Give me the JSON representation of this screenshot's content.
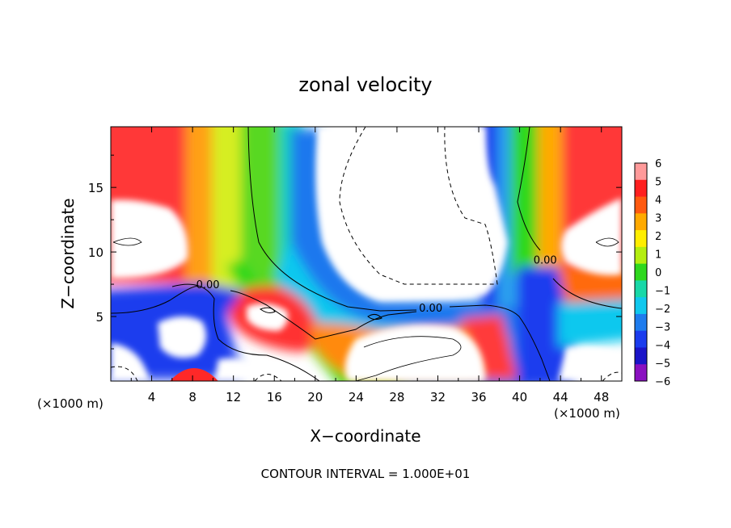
{
  "chart_data": {
    "type": "heatmap",
    "title": "zonal velocity",
    "xlabel": "X−coordinate",
    "ylabel": "Z−coordinate",
    "x_unit_left": "(×1000 m)",
    "x_unit_right": "(×1000 m)",
    "footer": "CONTOUR INTERVAL = 1.000E+01",
    "xlim": [
      0,
      50
    ],
    "ylim": [
      0,
      19.7
    ],
    "x_ticks": [
      4,
      8,
      12,
      16,
      20,
      24,
      28,
      32,
      36,
      40,
      44,
      48
    ],
    "x_tick_labels": [
      "4",
      "8",
      "12",
      "16",
      "20",
      "24",
      "28",
      "32",
      "36",
      "40",
      "44",
      "48"
    ],
    "y_ticks": [
      5,
      10,
      15
    ],
    "y_tick_labels": [
      "5",
      "10",
      "15"
    ],
    "colorbar": {
      "levels": [
        6,
        5,
        4,
        3,
        2,
        1,
        0,
        -1,
        -2,
        -3,
        -4,
        -5,
        -6
      ],
      "labels": [
        "6",
        "5",
        "4",
        "3",
        "2",
        "1",
        "0",
        "−1",
        "−2",
        "−3",
        "−4",
        "−5",
        "−6"
      ],
      "colors": [
        "#ff9a9a",
        "#ff2020",
        "#ff5a10",
        "#ffaa00",
        "#ffee00",
        "#b4ee10",
        "#2ed81e",
        "#18d8a8",
        "#10c8ee",
        "#1e7cee",
        "#1a3cee",
        "#1a14c8",
        "#8a10c0"
      ]
    },
    "contour_labels": [
      {
        "text": "0.00",
        "x": 9.5,
        "y": 7.5
      },
      {
        "text": "0.00",
        "x": 31.3,
        "y": 5.7
      },
      {
        "text": "0.00",
        "x": 42.5,
        "y": 9.4
      }
    ]
  }
}
